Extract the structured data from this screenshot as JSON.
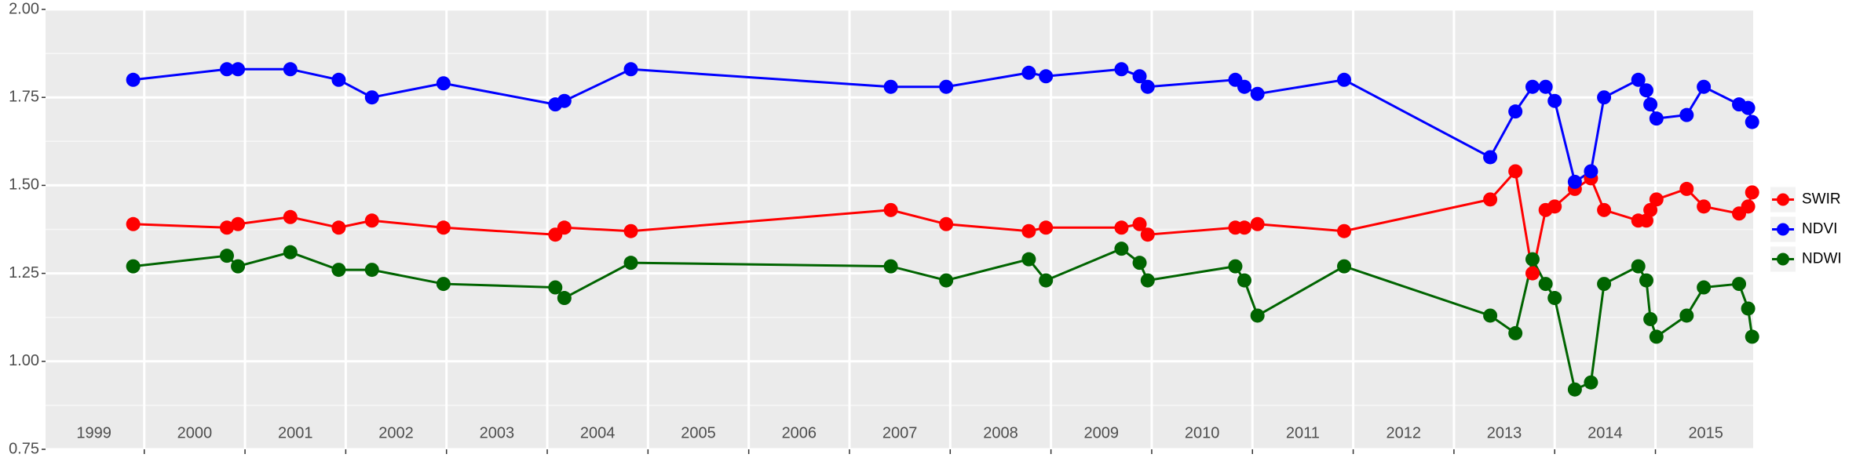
{
  "chart_data": {
    "type": "line",
    "x": [
      1999.89,
      2000.82,
      2000.93,
      2001.45,
      2001.93,
      2002.26,
      2002.97,
      2004.08,
      2004.17,
      2004.83,
      2007.41,
      2007.96,
      2008.78,
      2008.95,
      2009.7,
      2009.88,
      2009.96,
      2010.83,
      2010.92,
      2011.05,
      2011.91,
      2013.36,
      2013.61,
      2013.78,
      2013.91,
      2014.0,
      2014.2,
      2014.36,
      2014.49,
      2014.83,
      2014.91,
      2014.95,
      2015.01,
      2015.31,
      2015.48,
      2015.83,
      2015.92,
      2015.96
    ],
    "series": [
      {
        "name": "SWIR",
        "color": "#ff0000",
        "values": [
          1.39,
          1.38,
          1.39,
          1.41,
          1.38,
          1.4,
          1.38,
          1.36,
          1.38,
          1.37,
          1.43,
          1.39,
          1.37,
          1.38,
          1.38,
          1.39,
          1.36,
          1.38,
          1.38,
          1.39,
          1.37,
          1.46,
          1.54,
          1.25,
          1.43,
          1.44,
          1.49,
          1.52,
          1.43,
          1.4,
          1.4,
          1.43,
          1.46,
          1.49,
          1.44,
          1.42,
          1.44,
          1.48
        ]
      },
      {
        "name": "NDVI",
        "color": "#0000ff",
        "values": [
          1.8,
          1.83,
          1.83,
          1.83,
          1.8,
          1.75,
          1.79,
          1.73,
          1.74,
          1.83,
          1.78,
          1.78,
          1.82,
          1.81,
          1.83,
          1.81,
          1.78,
          1.8,
          1.78,
          1.76,
          1.8,
          1.58,
          1.71,
          1.78,
          1.78,
          1.74,
          1.51,
          1.54,
          1.75,
          1.8,
          1.77,
          1.73,
          1.69,
          1.7,
          1.78,
          1.73,
          1.72,
          1.68
        ]
      },
      {
        "name": "NDWI",
        "color": "#006400",
        "values": [
          1.27,
          1.3,
          1.27,
          1.31,
          1.26,
          1.26,
          1.22,
          1.21,
          1.18,
          1.28,
          1.27,
          1.23,
          1.29,
          1.23,
          1.32,
          1.28,
          1.23,
          1.27,
          1.23,
          1.13,
          1.27,
          1.13,
          1.08,
          1.29,
          1.22,
          1.18,
          0.92,
          0.94,
          1.22,
          1.27,
          1.23,
          1.12,
          1.07,
          1.13,
          1.21,
          1.22,
          1.15,
          1.07
        ]
      }
    ],
    "xlim": [
      1999.02,
      2015.97
    ],
    "xgrid": [
      2000,
      2001,
      2002,
      2003,
      2004,
      2005,
      2006,
      2007,
      2008,
      2009,
      2010,
      2011,
      2012,
      2013,
      2014,
      2015
    ],
    "xticks": [
      {
        "value": 1999.5,
        "label": "1999"
      },
      {
        "value": 2000.5,
        "label": "2000"
      },
      {
        "value": 2001.5,
        "label": "2001"
      },
      {
        "value": 2002.5,
        "label": "2002"
      },
      {
        "value": 2003.5,
        "label": "2003"
      },
      {
        "value": 2004.5,
        "label": "2004"
      },
      {
        "value": 2005.5,
        "label": "2005"
      },
      {
        "value": 2006.5,
        "label": "2006"
      },
      {
        "value": 2007.5,
        "label": "2007"
      },
      {
        "value": 2008.5,
        "label": "2008"
      },
      {
        "value": 2009.5,
        "label": "2009"
      },
      {
        "value": 2010.5,
        "label": "2010"
      },
      {
        "value": 2011.5,
        "label": "2011"
      },
      {
        "value": 2012.5,
        "label": "2012"
      },
      {
        "value": 2013.5,
        "label": "2013"
      },
      {
        "value": 2014.5,
        "label": "2014"
      },
      {
        "value": 2015.5,
        "label": "2015"
      }
    ],
    "ylim": [
      0.75,
      2.0
    ],
    "yticks": [
      0.75,
      {
        "value": 1,
        "label": "1.00"
      },
      1.25,
      {
        "value": 1.5,
        "label": "1.50"
      },
      1.75,
      {
        "value": 2,
        "label": "2.00"
      }
    ],
    "grid": true,
    "legend": "right"
  }
}
